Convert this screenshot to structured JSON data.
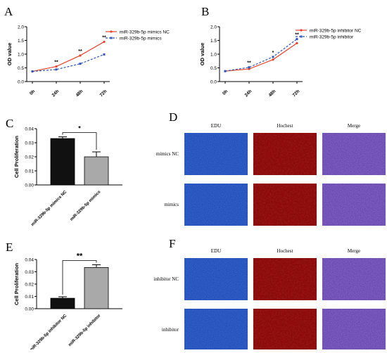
{
  "panels": {
    "A": "A",
    "B": "B",
    "C": "C",
    "D": "D",
    "E": "E",
    "F": "F"
  },
  "colors": {
    "nc_line": "#e8412c",
    "treat_line": "#2f55b8",
    "bar_black": "#111111",
    "bar_gray": "#a9a9a9",
    "edu_blue": "#1e49b8",
    "hochest_red": "#8a0a0a",
    "merge_purple": "#6848b0"
  },
  "chart_data": [
    {
      "panel": "A",
      "type": "line",
      "ylabel": "OD value",
      "categories": [
        "0h",
        "24h",
        "48h",
        "72h"
      ],
      "ylim": [
        0,
        2.0
      ],
      "yticks": [
        "0.0",
        "0.5",
        "1.0",
        "1.5",
        "2.0"
      ],
      "series": [
        {
          "name": "miR-329b-5p mimics NC",
          "values": [
            0.37,
            0.55,
            0.95,
            1.45
          ],
          "style": "solid",
          "color": "#e8412c"
        },
        {
          "name": "miR-329b-5p mimics",
          "values": [
            0.37,
            0.44,
            0.65,
            0.99
          ],
          "style": "dashed",
          "color": "#2f55b8"
        }
      ],
      "annotations": [
        "**",
        "**",
        "**"
      ],
      "legend": "top-left"
    },
    {
      "panel": "B",
      "type": "line",
      "ylabel": "OD value",
      "categories": [
        "0h",
        "24h",
        "48h",
        "72h"
      ],
      "ylim": [
        0,
        2.0
      ],
      "yticks": [
        "0.0",
        "0.5",
        "1.0",
        "1.5",
        "2.0"
      ],
      "series": [
        {
          "name": "miR-329b-5p inhibitor NC",
          "values": [
            0.38,
            0.46,
            0.8,
            1.4
          ],
          "style": "solid",
          "color": "#e8412c"
        },
        {
          "name": "miR-329b-5p inhibitor",
          "values": [
            0.38,
            0.52,
            0.9,
            1.55
          ],
          "style": "dashed",
          "color": "#2f55b8"
        }
      ],
      "annotations": [
        "**",
        "*",
        "**"
      ],
      "legend": "top-left"
    },
    {
      "panel": "C",
      "type": "bar",
      "ylabel": "Cell Proliferation",
      "categories": [
        "miR-329b-5p mimics NC",
        "miR-329b-5p mimics"
      ],
      "values": [
        0.033,
        0.02
      ],
      "errors": [
        0.0012,
        0.0035
      ],
      "ylim": [
        0,
        0.04
      ],
      "yticks": [
        "0.00",
        "0.01",
        "0.02",
        "0.03",
        "0.04"
      ],
      "significance": "*"
    },
    {
      "panel": "E",
      "type": "bar",
      "ylabel": "Cell Proliferation",
      "categories": [
        "miR-329b-5p inhibitor NC",
        "miR-329b-5p inhibitor"
      ],
      "values": [
        0.0085,
        0.0335
      ],
      "errors": [
        0.0012,
        0.0022
      ],
      "ylim": [
        0,
        0.04
      ],
      "yticks": [
        "0.00",
        "0.01",
        "0.02",
        "0.03",
        "0.04"
      ],
      "significance": "**"
    }
  ],
  "images_D": {
    "columns": [
      "EDU",
      "Hochest",
      "Merge"
    ],
    "rows": [
      "mimics NC",
      "mimics"
    ]
  },
  "images_F": {
    "columns": [
      "EDU",
      "Hochest",
      "Merge"
    ],
    "rows": [
      "inhibitor NC",
      "inhibitor"
    ]
  }
}
